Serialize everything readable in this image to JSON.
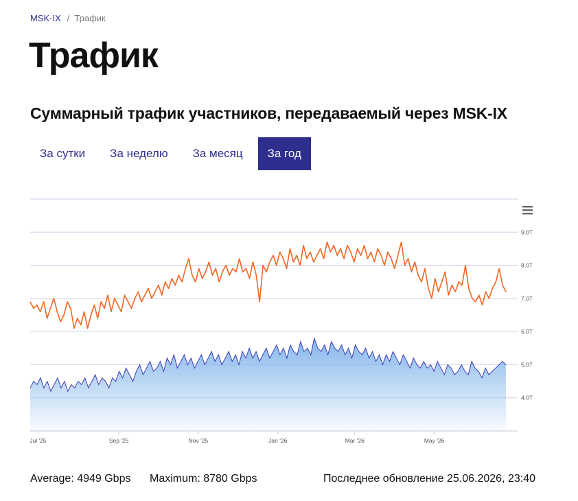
{
  "breadcrumb": {
    "root": "MSK-IX",
    "separator": "/",
    "current": "Трафик"
  },
  "page_title": "Трафик",
  "section_title": "Суммарный трафик участников, передаваемый через MSK-IX",
  "tabs": [
    {
      "label": "За сутки",
      "active": false
    },
    {
      "label": "За неделю",
      "active": false
    },
    {
      "label": "За месяц",
      "active": false
    },
    {
      "label": "За год",
      "active": true
    }
  ],
  "chart_menu_icon": "hamburger-menu-icon",
  "colors": {
    "accent": "#2e2e8f",
    "series_upper": "#f26522",
    "series_lower_line": "#3c3cb4",
    "series_lower_fill": "#7fb3ea",
    "grid": "#cfcfe6"
  },
  "chart_data": {
    "type": "line",
    "title": "",
    "xlabel": "",
    "ylabel": "",
    "x_ticks": [
      "Jul '25",
      "Sep '25",
      "Nov '25",
      "Jan '26",
      "Mar '26",
      "May '26"
    ],
    "y_ticks": [
      "4.0T",
      "5.0T",
      "6.0T",
      "7.0T",
      "8.0T",
      "9.0T"
    ],
    "ylim": [
      3.0,
      10.0
    ],
    "y_unit": "Tbps",
    "grid": true,
    "legend": "none",
    "x_range": [
      "2025-06-25",
      "2026-06-25"
    ],
    "series": [
      {
        "style": "line",
        "color": "#f26522",
        "values": [
          6.9,
          6.7,
          6.8,
          6.6,
          6.9,
          6.4,
          6.7,
          7.0,
          6.6,
          6.3,
          6.5,
          6.9,
          6.7,
          6.1,
          6.4,
          6.2,
          6.6,
          6.1,
          6.5,
          6.8,
          6.4,
          6.9,
          6.7,
          7.1,
          6.6,
          7.0,
          6.8,
          6.6,
          7.1,
          6.9,
          6.7,
          7.0,
          7.2,
          6.9,
          7.1,
          7.3,
          7.0,
          7.2,
          7.4,
          7.1,
          7.5,
          7.3,
          7.6,
          7.4,
          7.7,
          7.5,
          7.9,
          8.2,
          7.7,
          7.5,
          7.9,
          7.6,
          7.8,
          8.1,
          7.7,
          7.9,
          7.5,
          7.8,
          8.0,
          7.7,
          7.9,
          7.8,
          8.2,
          7.8,
          7.9,
          7.6,
          8.1,
          7.7,
          6.9,
          8.0,
          7.8,
          8.1,
          8.3,
          8.0,
          8.4,
          8.2,
          7.9,
          8.5,
          8.1,
          8.3,
          8.0,
          8.6,
          8.2,
          8.4,
          8.1,
          8.3,
          8.5,
          8.2,
          8.7,
          8.4,
          8.6,
          8.3,
          8.5,
          8.2,
          8.6,
          8.4,
          8.1,
          8.5,
          8.3,
          8.6,
          8.2,
          8.4,
          8.1,
          8.5,
          8.3,
          8.0,
          8.4,
          8.2,
          7.9,
          8.3,
          8.7,
          8.0,
          8.2,
          7.8,
          8.1,
          7.7,
          7.5,
          7.9,
          7.3,
          7.0,
          7.6,
          7.2,
          7.5,
          7.8,
          7.1,
          7.4,
          7.2,
          7.5,
          7.4,
          8.0,
          7.3,
          7.0,
          6.9,
          7.1,
          6.8,
          7.2,
          7.0,
          7.3,
          7.5,
          7.9,
          7.4,
          7.2
        ]
      },
      {
        "style": "area",
        "color": "#3c3cb4",
        "values": [
          4.3,
          4.5,
          4.4,
          4.6,
          4.3,
          4.5,
          4.2,
          4.4,
          4.6,
          4.3,
          4.5,
          4.2,
          4.4,
          4.3,
          4.5,
          4.4,
          4.6,
          4.3,
          4.5,
          4.7,
          4.4,
          4.6,
          4.5,
          4.3,
          4.6,
          4.5,
          4.8,
          4.6,
          4.9,
          4.7,
          4.5,
          4.8,
          5.0,
          4.7,
          4.9,
          5.1,
          4.8,
          4.9,
          5.1,
          4.8,
          5.2,
          5.0,
          5.3,
          4.9,
          5.1,
          5.3,
          5.0,
          5.2,
          4.9,
          5.1,
          5.3,
          5.0,
          5.2,
          5.4,
          5.1,
          5.3,
          5.0,
          5.2,
          5.4,
          5.1,
          5.3,
          5.0,
          5.4,
          5.2,
          5.5,
          5.2,
          5.4,
          5.1,
          5.3,
          5.5,
          5.2,
          5.4,
          5.6,
          5.3,
          5.5,
          5.2,
          5.6,
          5.4,
          5.3,
          5.7,
          5.4,
          5.5,
          5.3,
          5.8,
          5.5,
          5.4,
          5.6,
          5.3,
          5.7,
          5.5,
          5.4,
          5.6,
          5.3,
          5.5,
          5.2,
          5.6,
          5.4,
          5.3,
          5.5,
          5.2,
          5.4,
          5.1,
          5.3,
          5.0,
          5.3,
          5.1,
          5.4,
          5.2,
          5.0,
          5.3,
          5.1,
          4.9,
          5.2,
          5.0,
          4.9,
          5.1,
          4.9,
          5.0,
          4.8,
          5.1,
          4.9,
          4.7,
          5.0,
          4.9,
          4.7,
          4.8,
          5.0,
          4.8,
          4.7,
          5.1,
          4.9,
          4.8,
          4.6,
          4.9,
          4.7,
          4.8,
          4.9,
          5.0,
          5.1,
          5.0
        ]
      }
    ]
  },
  "stats": {
    "average": "Average: 4949 Gbps",
    "maximum": "Maximum: 8780 Gbps",
    "updated": "Последнее обновление 25.06.2026, 23:40"
  }
}
